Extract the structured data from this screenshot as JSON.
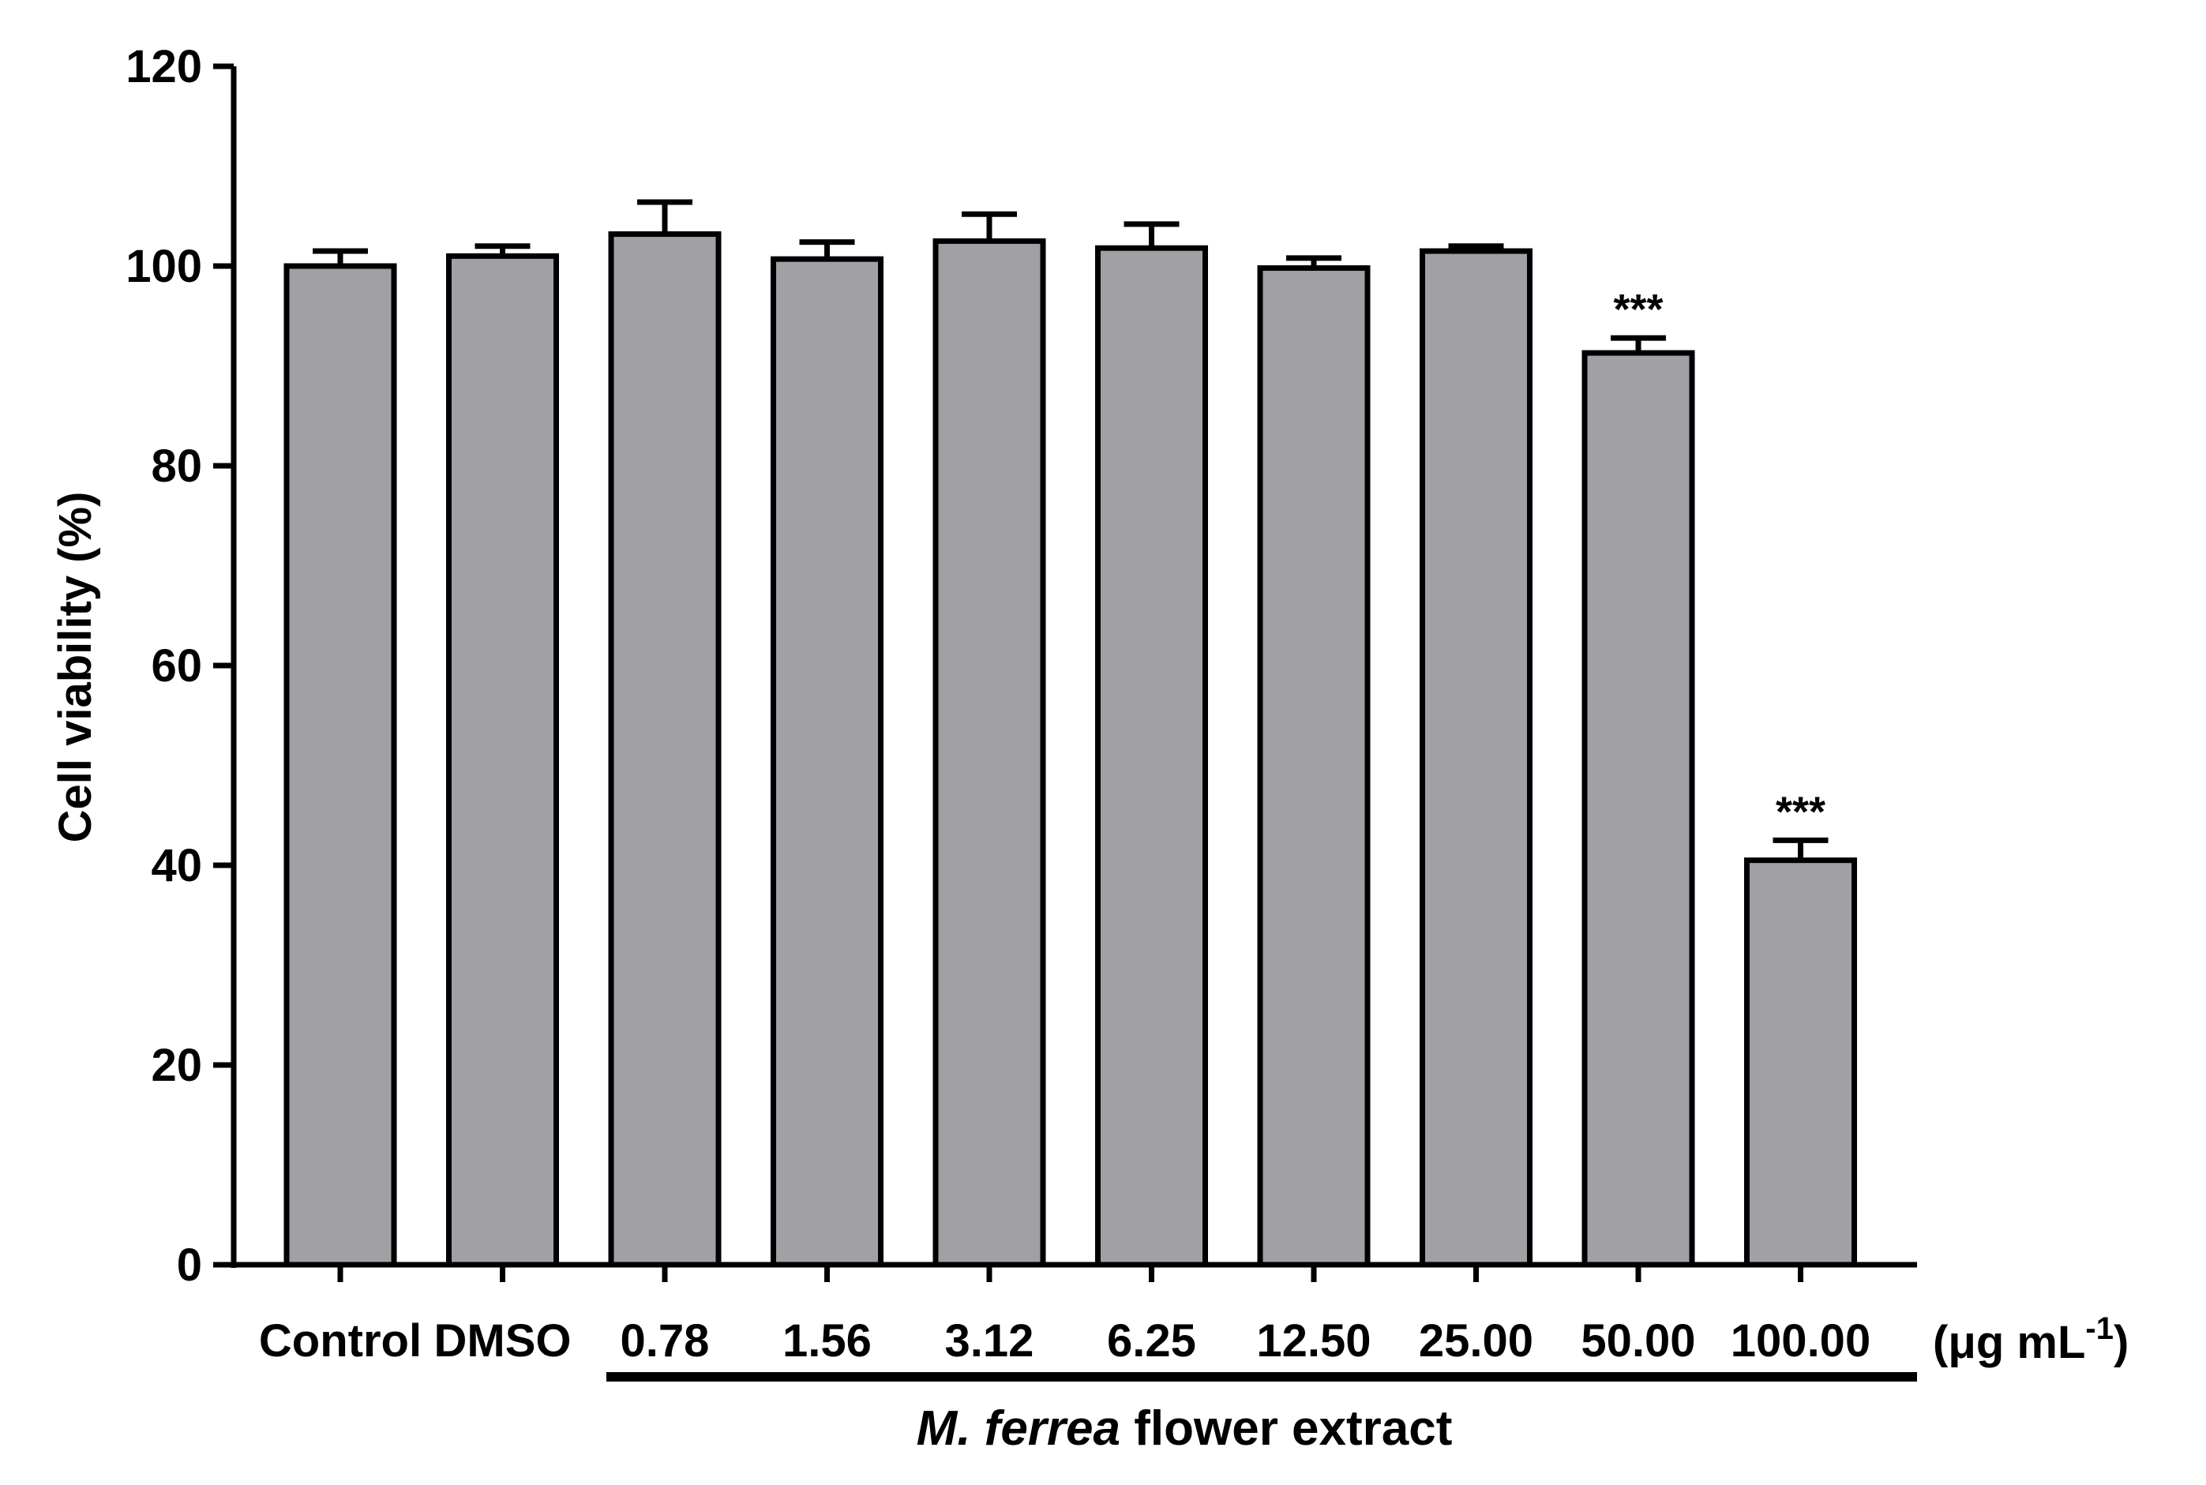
{
  "chart_data": {
    "type": "bar",
    "categories": [
      "Control",
      "DMSO",
      "0.78",
      "1.56",
      "3.12",
      "6.25",
      "12.50",
      "25.00",
      "50.00",
      "100.00"
    ],
    "values": [
      100.0,
      101.0,
      103.2,
      100.7,
      102.5,
      101.8,
      99.8,
      101.5,
      91.3,
      40.5
    ],
    "error_upper": [
      1.5,
      1.0,
      3.2,
      1.7,
      2.7,
      2.4,
      1.0,
      0.5,
      1.5,
      2.0
    ],
    "significance": [
      "",
      "",
      "",
      "",
      "",
      "",
      "",
      "",
      "***",
      "***"
    ],
    "ylabel": "Cell viability (%)",
    "ylim": [
      0,
      120
    ],
    "yticks": [
      0,
      20,
      40,
      60,
      80,
      100,
      120
    ],
    "unit_label": {
      "open": "(",
      "mu": "μ",
      "main": "g mL",
      "exp": "-1",
      "close": ")"
    },
    "group_label": {
      "italic": "M. ferrea",
      "rest": " flower extract"
    },
    "grid": false,
    "legend": "none",
    "colors": {
      "bar_fill": "#a1a0a5",
      "bar_stroke": "#000000",
      "axis": "#000000"
    }
  }
}
